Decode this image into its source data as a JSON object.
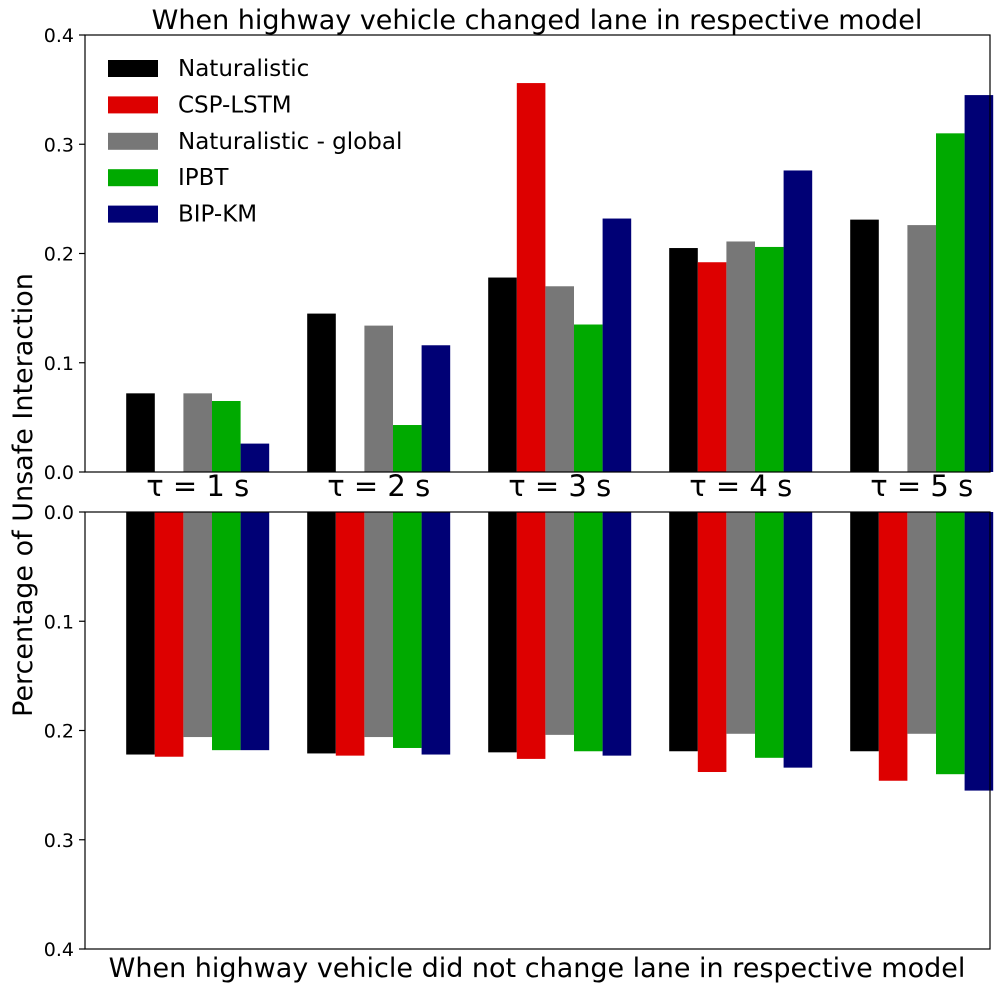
{
  "chart_data": {
    "type": "bar",
    "ylabel": "Percentage of Unsafe Interaction",
    "categories": [
      "τ = 1 s",
      "τ = 2 s",
      "τ = 3 s",
      "τ = 4 s",
      "τ = 5 s"
    ],
    "legend_position": "top-left",
    "panels": [
      {
        "title": "When highway vehicle changed lane in respective model",
        "title_position": "top",
        "direction": "up",
        "ylim": [
          0,
          0.4
        ],
        "yticks": [
          "0.0",
          "0.1",
          "0.2",
          "0.3",
          "0.4"
        ],
        "series": [
          {
            "name": "Naturalistic",
            "color": "#000000",
            "values": [
              0.072,
              0.145,
              0.178,
              0.205,
              0.231
            ]
          },
          {
            "name": "CSP-LSTM",
            "color": "#dd0000",
            "values": [
              0.0,
              0.0,
              0.356,
              0.192,
              0.0
            ]
          },
          {
            "name": "Naturalistic - global",
            "color": "#777777",
            "values": [
              0.072,
              0.134,
              0.17,
              0.211,
              0.226
            ]
          },
          {
            "name": "IPBT",
            "color": "#00aa00",
            "values": [
              0.065,
              0.043,
              0.135,
              0.206,
              0.31
            ]
          },
          {
            "name": "BIP-KM",
            "color": "#000075",
            "values": [
              0.026,
              0.116,
              0.232,
              0.276,
              0.345
            ]
          }
        ]
      },
      {
        "title": "When highway vehicle did not change lane in respective model",
        "title_position": "bottom",
        "direction": "down",
        "ylim": [
          0,
          0.4
        ],
        "yticks": [
          "0.0",
          "0.1",
          "0.2",
          "0.3",
          "0.4"
        ],
        "series": [
          {
            "name": "Naturalistic",
            "color": "#000000",
            "values": [
              0.222,
              0.221,
              0.22,
              0.219,
              0.219
            ]
          },
          {
            "name": "CSP-LSTM",
            "color": "#dd0000",
            "values": [
              0.224,
              0.223,
              0.226,
              0.238,
              0.246
            ]
          },
          {
            "name": "Naturalistic - global",
            "color": "#777777",
            "values": [
              0.206,
              0.206,
              0.204,
              0.203,
              0.203
            ]
          },
          {
            "name": "IPBT",
            "color": "#00aa00",
            "values": [
              0.218,
              0.216,
              0.219,
              0.225,
              0.24
            ]
          },
          {
            "name": "BIP-KM",
            "color": "#000075",
            "values": [
              0.218,
              0.222,
              0.223,
              0.234,
              0.255
            ]
          }
        ]
      }
    ]
  }
}
